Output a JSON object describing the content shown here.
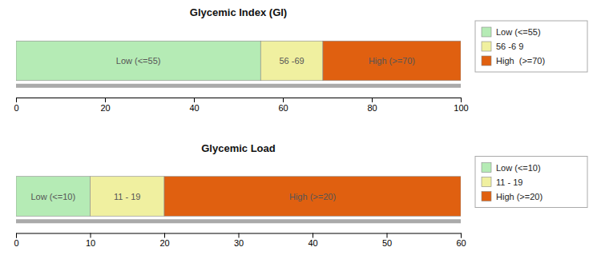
{
  "chart_data": [
    {
      "type": "bar",
      "orientation": "horizontal",
      "stacked": true,
      "title": "Glycemic Index (GI)",
      "categories": [
        null
      ],
      "series": [
        {
          "name": "Low (<=55)",
          "color": "#b5ebb5",
          "values": [
            55
          ]
        },
        {
          "name": "56 -6 9",
          "color": "#f0f0a0",
          "values": [
            14
          ]
        },
        {
          "name": "High  (>=70)",
          "color": "#e06010",
          "values": [
            31
          ]
        }
      ],
      "annotations": [
        {
          "text": "Low (<=55)",
          "x": 27.5
        },
        {
          "text": "56 -69",
          "x": 62
        },
        {
          "text": "High (>=70)",
          "x": 84.5
        }
      ],
      "xlim": [
        0,
        100
      ],
      "xticks": [
        0,
        20,
        40,
        60,
        80,
        100
      ],
      "grid": false,
      "legend": "right",
      "tick_labels": "x"
    },
    {
      "type": "bar",
      "orientation": "horizontal",
      "stacked": true,
      "title": "Glycemic Load",
      "categories": [
        null
      ],
      "series": [
        {
          "name": "Low (<=10)",
          "color": "#b5ebb5",
          "values": [
            10
          ]
        },
        {
          "name": "11 - 19",
          "color": "#f0f0a0",
          "values": [
            10
          ]
        },
        {
          "name": "High (>=20)",
          "color": "#e06010",
          "values": [
            40
          ]
        }
      ],
      "annotations": [
        {
          "text": "Low (<=10)",
          "x": 5
        },
        {
          "text": "11 - 19",
          "x": 15
        },
        {
          "text": "High (>=20)",
          "x": 40
        }
      ],
      "xlim": [
        0,
        60
      ],
      "xticks": [
        0,
        10,
        20,
        30,
        40,
        50,
        60
      ],
      "grid": false,
      "legend": "right",
      "tick_labels": "x"
    }
  ]
}
